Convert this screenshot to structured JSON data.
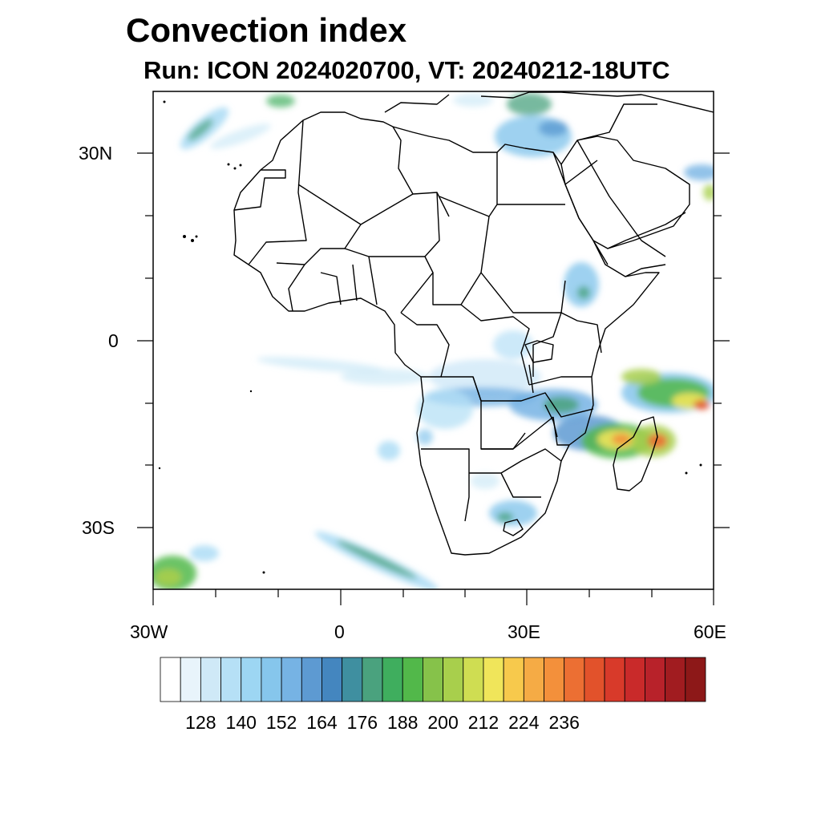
{
  "title": "Convection index",
  "subtitle": "Run: ICON 2024020700,  VT: 20240212-18UTC",
  "map": {
    "region": "Africa",
    "lon_range": [
      -30,
      60
    ],
    "lat_range": [
      -40,
      40
    ],
    "lon_ticks": [
      "30W",
      "0",
      "30E",
      "60E"
    ],
    "lat_ticks": [
      "30N",
      "0",
      "30S"
    ]
  },
  "colorbar": {
    "labels": [
      "128",
      "140",
      "152",
      "164",
      "176",
      "188",
      "200",
      "212",
      "224",
      "236"
    ],
    "colors": [
      "#ffffff",
      "#e8f4fb",
      "#cfe9f7",
      "#b6e0f6",
      "#9dd6f3",
      "#86c6ec",
      "#76b3e4",
      "#5d9ad2",
      "#4486bf",
      "#3f8fa0",
      "#4aa27e",
      "#3fae5e",
      "#52b84a",
      "#86c24a",
      "#a8cf4c",
      "#cfdd52",
      "#f0e55a",
      "#f7c94c",
      "#f5ab45",
      "#f3903b",
      "#ec6f33",
      "#e2522b",
      "#d83a2a",
      "#c92a2a",
      "#b8222a",
      "#a11c20",
      "#8d1818"
    ]
  }
}
